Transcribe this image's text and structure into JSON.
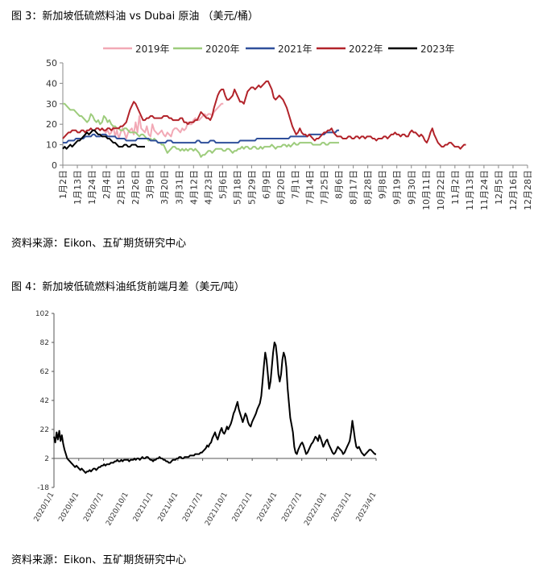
{
  "figures": [
    {
      "caption": "图 3：新加坡低硫燃料油 vs Dubai 原油 （美元/桶）",
      "source": "资料来源：Eikon、五矿期货研究中心"
    },
    {
      "caption": "图 4：新加坡低硫燃料油纸货前端月差（美元/吨）",
      "source": "资料来源：Eikon、五矿期货研究中心"
    }
  ],
  "chart_data": [
    {
      "type": "line",
      "title": "",
      "xlabel": "",
      "ylabel": "",
      "ylim": [
        0,
        50
      ],
      "yticks": [
        0,
        10,
        20,
        30,
        40,
        50
      ],
      "x_ticks": [
        "1月2日",
        "1月13日",
        "1月24日",
        "2月4日",
        "2月15日",
        "2月26日",
        "3月9日",
        "3月20日",
        "3月31日",
        "4月12日",
        "4月23日",
        "5月6日",
        "5月18日",
        "5月29日",
        "6月9日",
        "6月20日",
        "7月1日",
        "7月14日",
        "7月25日",
        "8月6日",
        "8月17日",
        "8月28日",
        "9月8日",
        "9月19日",
        "9月30日",
        "10月11日",
        "10月22日",
        "11月2日",
        "11月13日",
        "11月24日",
        "12月5日",
        "12月16日",
        "12月28日"
      ],
      "legend_position": "top",
      "colors": {
        "2019年": "#f2a9b6",
        "2020年": "#9dcc7c",
        "2021年": "#2f4f9b",
        "2022年": "#b2232a",
        "2023年": "#000000"
      },
      "series": [
        {
          "name": "2019年",
          "start_index": 21,
          "values": [
            18,
            17,
            16,
            17,
            15,
            16,
            19,
            14,
            17,
            13,
            16,
            18,
            16,
            13,
            16,
            17,
            18,
            15,
            21,
            16,
            24,
            18,
            17,
            16,
            19,
            15,
            14,
            20,
            17,
            16,
            15,
            16,
            17,
            15,
            14,
            16,
            15,
            14,
            17,
            18,
            18,
            17,
            16,
            18,
            17,
            18,
            21,
            20,
            20,
            22,
            23,
            22,
            22,
            23,
            24,
            25,
            24,
            25,
            25,
            24,
            26,
            27,
            28,
            29,
            30,
            30
          ]
        },
        {
          "name": "2020年",
          "values": [
            30,
            30,
            29,
            28,
            27,
            27,
            27,
            26,
            25,
            24,
            24,
            23,
            22,
            21,
            22,
            25,
            24,
            22,
            21,
            22,
            20,
            21,
            24,
            23,
            21,
            22,
            20,
            19,
            19,
            18,
            18,
            17,
            17,
            18,
            18,
            17,
            16,
            16,
            16,
            16,
            15,
            14,
            15,
            15,
            14,
            13,
            12,
            13,
            12,
            13,
            12,
            11,
            11,
            10,
            10,
            8,
            6,
            7,
            8,
            9,
            9,
            8,
            8,
            7,
            8,
            7,
            8,
            7,
            8,
            8,
            7,
            8,
            7,
            6,
            4,
            5,
            5,
            6,
            7,
            7,
            6,
            7,
            8,
            8,
            8,
            8,
            7,
            7,
            8,
            8,
            7,
            6,
            7,
            7,
            8,
            8,
            9,
            8,
            9,
            9,
            8,
            8,
            9,
            9,
            8,
            8,
            9,
            8,
            9,
            9,
            9,
            9,
            10,
            9,
            8,
            9,
            9,
            9,
            10,
            10,
            9,
            10,
            9,
            10,
            11,
            10,
            10,
            11,
            11,
            11,
            11,
            11,
            11,
            11,
            10,
            10,
            10,
            10,
            10,
            11,
            11,
            10,
            10,
            11,
            11,
            11,
            11,
            11,
            11
          ]
        },
        {
          "name": "2021年",
          "values": [
            11,
            11,
            11,
            12,
            12,
            12,
            12,
            13,
            13,
            13,
            13,
            13,
            14,
            14,
            14,
            14,
            15,
            15,
            14,
            14,
            14,
            15,
            15,
            15,
            14,
            14,
            14,
            14,
            14,
            13,
            13,
            13,
            13,
            13,
            12,
            12,
            12,
            12,
            12,
            12,
            13,
            13,
            13,
            13,
            13,
            13,
            13,
            12,
            12,
            12,
            12,
            11,
            11,
            11,
            11,
            11,
            12,
            12,
            12,
            11,
            11,
            11,
            11,
            11,
            11,
            11,
            11,
            11,
            11,
            11,
            11,
            11,
            12,
            12,
            11,
            11,
            11,
            11,
            11,
            12,
            12,
            12,
            11,
            11,
            11,
            11,
            11,
            11,
            11,
            11,
            11,
            11,
            11,
            11,
            11,
            12,
            12,
            12,
            12,
            12,
            12,
            12,
            12,
            12,
            13,
            13,
            13,
            13,
            13,
            13,
            13,
            13,
            13,
            13,
            13,
            13,
            13,
            13,
            13,
            13,
            13,
            13,
            14,
            14,
            14,
            14,
            14,
            14,
            14,
            14,
            14,
            14,
            15,
            15,
            15,
            15,
            15,
            15,
            15,
            15,
            15,
            16,
            16,
            16,
            16,
            16,
            16,
            17,
            17
          ]
        },
        {
          "name": "2022年",
          "values": [
            13,
            14,
            15,
            16,
            16,
            17,
            17,
            17,
            16,
            16,
            17,
            17,
            16,
            17,
            17,
            18,
            17,
            17,
            18,
            18,
            17,
            18,
            17,
            17,
            18,
            18,
            17,
            18,
            18,
            18,
            18,
            19,
            19,
            20,
            21,
            24,
            27,
            29,
            31,
            30,
            28,
            26,
            24,
            22,
            22,
            23,
            23,
            24,
            24,
            23,
            23,
            23,
            23,
            23,
            24,
            24,
            24,
            23,
            23,
            22,
            22,
            22,
            22,
            23,
            23,
            21,
            21,
            20,
            21,
            21,
            21,
            22,
            22,
            24,
            26,
            25,
            24,
            23,
            23,
            22,
            24,
            28,
            31,
            34,
            36,
            37,
            37,
            34,
            32,
            32,
            33,
            34,
            37,
            35,
            33,
            31,
            31,
            30,
            33,
            36,
            37,
            38,
            38,
            37,
            38,
            39,
            38,
            39,
            40,
            41,
            41,
            39,
            37,
            33,
            32,
            33,
            34,
            33,
            32,
            30,
            28,
            25,
            22,
            19,
            17,
            15,
            16,
            18,
            16,
            15,
            15,
            14,
            15,
            14,
            13,
            12,
            13,
            13,
            14,
            15,
            16,
            16,
            17,
            17,
            18,
            16,
            15,
            14,
            14,
            14,
            13,
            13,
            13,
            14,
            14,
            13,
            13,
            14,
            14,
            13,
            14,
            14,
            13,
            14,
            14,
            14,
            13,
            13,
            12,
            13,
            13,
            13,
            14,
            14,
            13,
            14,
            15,
            15,
            16,
            15,
            15,
            14,
            15,
            15,
            14,
            14,
            16,
            17,
            16,
            16,
            15,
            14,
            15,
            14,
            12,
            11,
            13,
            16,
            18,
            15,
            13,
            11,
            10,
            9,
            9,
            10,
            10,
            11,
            11,
            10,
            9,
            9,
            9,
            8,
            9,
            10,
            10
          ]
        },
        {
          "name": "2023年",
          "values": [
            8,
            9,
            8,
            9,
            10,
            9,
            10,
            11,
            12,
            12,
            13,
            14,
            15,
            16,
            15,
            16,
            17,
            17,
            16,
            15,
            15,
            14,
            14,
            14,
            13,
            13,
            12,
            11,
            11,
            10,
            9,
            9,
            9,
            10,
            10,
            9,
            9,
            10,
            10,
            10,
            9,
            9,
            9,
            9,
            9
          ]
        }
      ]
    },
    {
      "type": "line",
      "title": "",
      "xlabel": "",
      "ylabel": "",
      "ylim": [
        -18,
        102
      ],
      "yticks": [
        -18,
        2,
        22,
        42,
        62,
        82,
        102
      ],
      "x_ticks": [
        "2020/1/1",
        "2020/4/1",
        "2020/7/1",
        "2020/10/1",
        "2021/1/1",
        "2021/4/1",
        "2021/7/1",
        "2021/10/1",
        "2022/1/1",
        "2022/4/1",
        "2022/7/1",
        "2022/10/1",
        "2023/1/1",
        "2023/4/1"
      ],
      "colors": {
        "line": "#000000"
      },
      "series": [
        {
          "name": "",
          "values": [
            17,
            13,
            20,
            15,
            21,
            14,
            18,
            12,
            8,
            5,
            2,
            1,
            0,
            -1,
            -2,
            -3,
            -4,
            -3,
            -4,
            -5,
            -6,
            -5,
            -6,
            -7,
            -8,
            -7,
            -7,
            -6,
            -7,
            -6,
            -5,
            -5,
            -6,
            -5,
            -4,
            -4,
            -3,
            -3,
            -2,
            -3,
            -2,
            -2,
            -2,
            -1,
            -1,
            -1,
            0,
            0,
            1,
            0,
            0,
            1,
            0,
            1,
            1,
            1,
            1,
            0,
            1,
            1,
            1,
            2,
            1,
            2,
            2,
            1,
            2,
            3,
            2,
            2,
            3,
            3,
            2,
            1,
            1,
            0,
            1,
            1,
            2,
            2,
            3,
            2,
            2,
            1,
            1,
            0,
            0,
            -1,
            -1,
            0,
            1,
            1,
            1,
            2,
            2,
            3,
            3,
            2,
            2,
            3,
            3,
            3,
            3,
            4,
            4,
            4,
            4,
            5,
            5,
            5,
            5,
            6,
            6,
            7,
            8,
            9,
            11,
            10,
            12,
            13,
            16,
            18,
            20,
            17,
            15,
            18,
            21,
            23,
            20,
            19,
            21,
            24,
            22,
            24,
            26,
            29,
            33,
            35,
            38,
            41,
            36,
            33,
            30,
            27,
            30,
            33,
            31,
            27,
            25,
            24,
            27,
            29,
            31,
            33,
            36,
            38,
            40,
            45,
            55,
            66,
            75,
            70,
            60,
            50,
            55,
            65,
            75,
            82,
            80,
            72,
            60,
            55,
            60,
            70,
            75,
            72,
            65,
            50,
            40,
            30,
            25,
            20,
            10,
            6,
            5,
            8,
            10,
            12,
            13,
            11,
            8,
            5,
            6,
            8,
            10,
            12,
            13,
            15,
            17,
            16,
            14,
            18,
            16,
            13,
            10,
            12,
            14,
            15,
            12,
            10,
            8,
            6,
            5,
            6,
            8,
            10,
            9,
            8,
            7,
            5,
            6,
            8,
            10,
            12,
            14,
            20,
            28,
            22,
            15,
            10,
            9,
            10,
            8,
            6,
            5,
            4,
            5,
            6,
            7,
            8,
            8,
            7,
            6,
            5,
            5
          ]
        }
      ]
    }
  ]
}
